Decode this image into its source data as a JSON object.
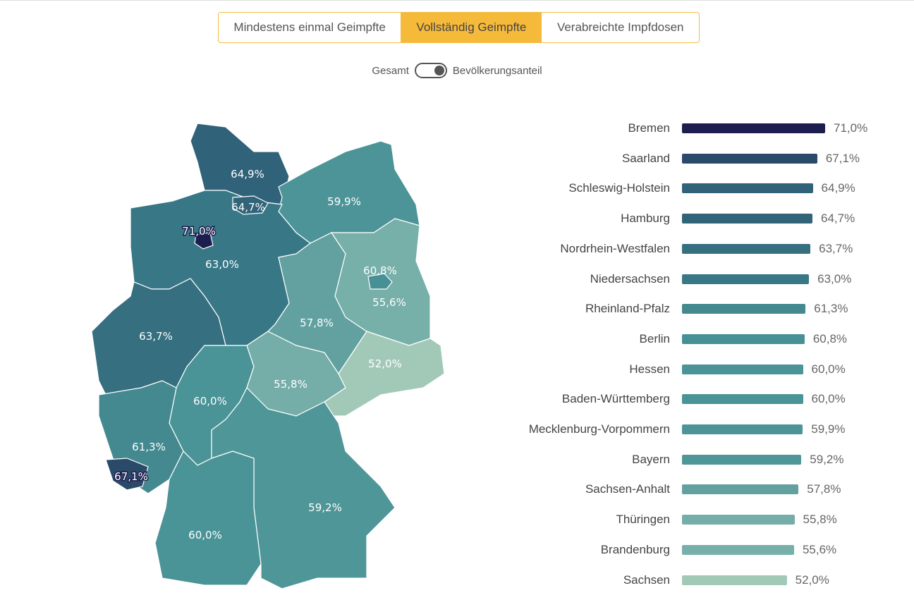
{
  "tabs": [
    {
      "label": "Mindestens einmal Geimpfte",
      "active": false
    },
    {
      "label": "Vollständig Geimpfte",
      "active": true
    },
    {
      "label": "Verabreichte Impfdosen",
      "active": false
    }
  ],
  "toggle": {
    "left": "Gesamt",
    "right": "Bevölkerungsanteil",
    "state": "right"
  },
  "chart_data": {
    "type": "bar",
    "title": "Vollständig Geimpfte – Bevölkerungsanteil",
    "unit": "%",
    "categories": [
      "Bremen",
      "Saarland",
      "Schleswig-Holstein",
      "Hamburg",
      "Nordrhein-Westfalen",
      "Niedersachsen",
      "Rheinland-Pfalz",
      "Berlin",
      "Hessen",
      "Baden-Württemberg",
      "Mecklenburg-Vorpommern",
      "Bayern",
      "Sachsen-Anhalt",
      "Thüringen",
      "Brandenburg",
      "Sachsen"
    ],
    "values": [
      71.0,
      67.1,
      64.9,
      64.7,
      63.7,
      63.0,
      61.3,
      60.8,
      60.0,
      60.0,
      59.9,
      59.2,
      57.8,
      55.8,
      55.6,
      52.0
    ],
    "labels": [
      "71,0%",
      "67,1%",
      "64,9%",
      "64,7%",
      "63,7%",
      "63,0%",
      "61,3%",
      "60,8%",
      "60,0%",
      "60,0%",
      "59,9%",
      "59,2%",
      "57,8%",
      "55,8%",
      "55,6%",
      "52,0%"
    ],
    "colors": [
      "#1d1d4f",
      "#2b4a69",
      "#30627a",
      "#326479",
      "#356f80",
      "#387886",
      "#44898f",
      "#479095",
      "#4a9397",
      "#4a9397",
      "#4c9498",
      "#4f9699",
      "#62a1a0",
      "#75ada8",
      "#77afa9",
      "#a2c9b8"
    ]
  }
}
